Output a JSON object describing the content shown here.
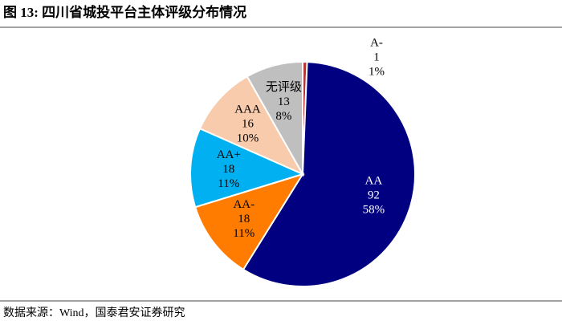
{
  "chart_data": {
    "type": "pie",
    "title": "图 13: 四川省城投平台主体评级分布情况",
    "source": "数据来源：Wind，国泰君安证券研究",
    "categories": [
      "A-",
      "AA",
      "AA-",
      "AA+",
      "AAA",
      "无评级"
    ],
    "values": [
      1,
      92,
      18,
      18,
      16,
      13
    ],
    "share_labels": [
      "1%",
      "58%",
      "11%",
      "11%",
      "10%",
      "8%"
    ],
    "colors": [
      "#b23a3a",
      "#000080",
      "#ff7c00",
      "#00b0f0",
      "#f8cbad",
      "#bfbfbf"
    ],
    "start_angle": "top",
    "direction": "clockwise"
  }
}
